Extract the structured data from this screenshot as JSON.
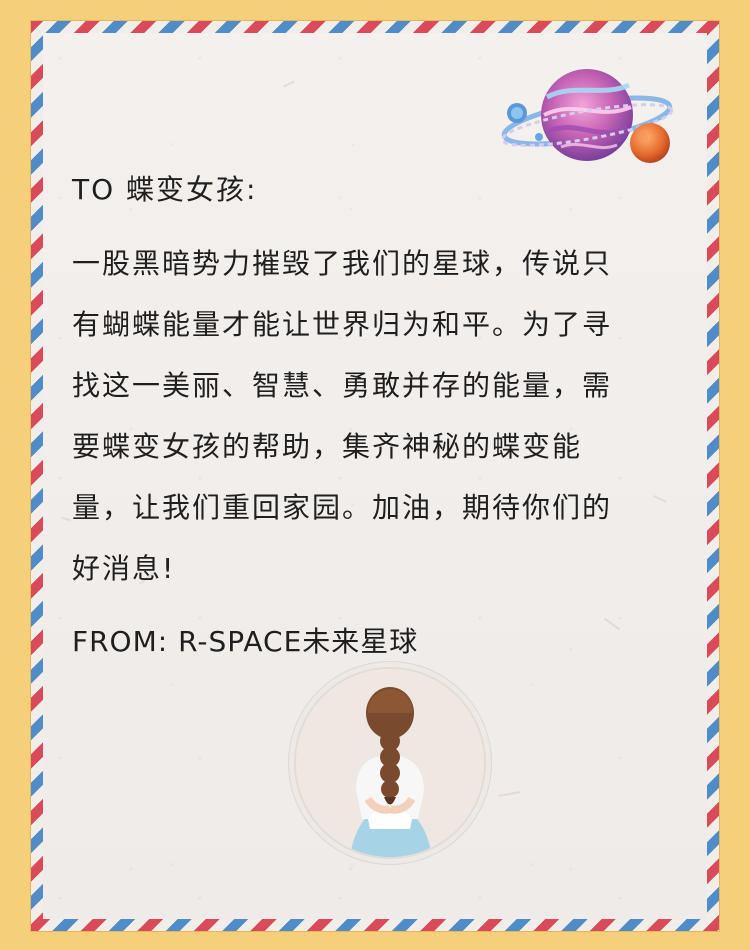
{
  "letter": {
    "greeting": "TO 蝶变女孩:",
    "body": "一股黑暗势力摧毁了我们的星球，传说只有蝴蝶能量才能让世界归为和平。为了寻找这一美丽、智慧、勇敢并存的能量，需要蝶变女孩的帮助，集齐神秘的蝶变能量，让我们重回家园。加油，期待你们的好消息!",
    "signature": "FROM: R-SPACE未来星球"
  },
  "colors": {
    "background": "#f6cf79",
    "stripe_red": "#d94a5a",
    "stripe_blue": "#4f8cc8",
    "paper": "#f2eeeb",
    "text": "#1f1f1f"
  },
  "icons": {
    "planet": "ringed-planet-illustration",
    "avatar": "girl-braid-illustration"
  }
}
